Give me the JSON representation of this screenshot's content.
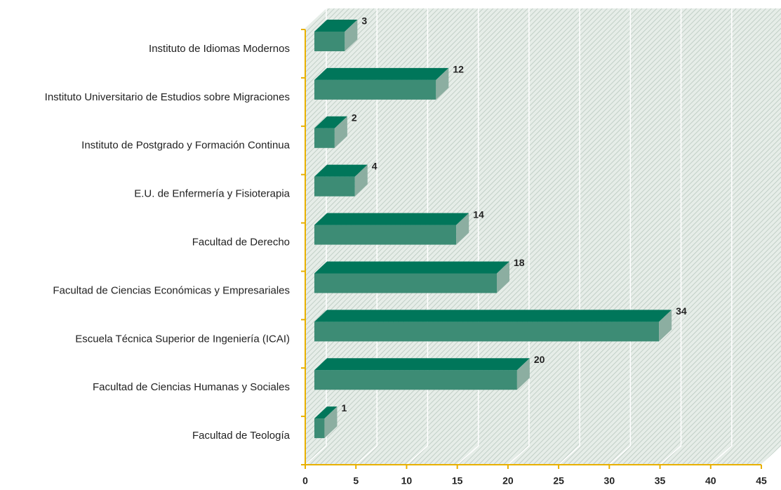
{
  "chart_data": {
    "type": "bar3d_horizontal",
    "categories": [
      "Instituto de Idiomas Modernos",
      "Instituto Universitario de Estudios sobre Migraciones",
      "Instituto de Postgrado y Formación Continua",
      "E.U. de Enfermería y Fisioterapia",
      "Facultad de Derecho",
      "Facultad de Ciencias Económicas y Empresariales",
      "Escuela Técnica Superior de Ingeniería (ICAI)",
      "Facultad de Ciencias Humanas y Sociales",
      "Facultad de Teología"
    ],
    "values": [
      3,
      12,
      2,
      4,
      14,
      18,
      34,
      20,
      1
    ],
    "colors": {
      "front": "#3d8c75",
      "top": "#00765a",
      "side": "#8caea1"
    },
    "xlim": [
      0,
      45
    ],
    "xticks": [
      0,
      5,
      10,
      15,
      20,
      25,
      30,
      35,
      40,
      45
    ],
    "grid": true
  }
}
